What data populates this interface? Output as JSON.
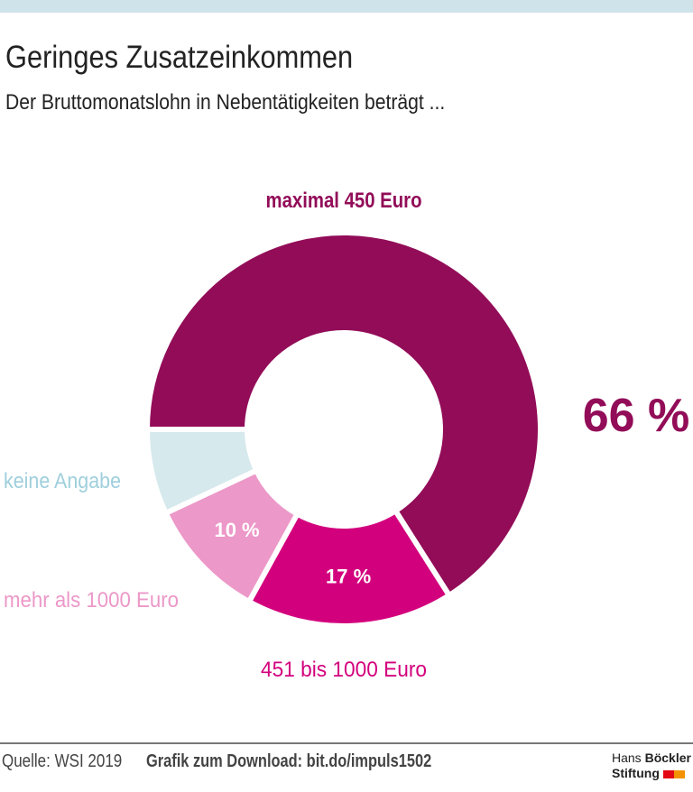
{
  "title": "Geringes Zusatzeinkommen",
  "subtitle": "Der Bruttomonatslohn in Nebentätigkeiten beträgt ...",
  "chart_data": {
    "type": "pie",
    "donut": true,
    "slices": [
      {
        "label": "maximal 450 Euro",
        "value": 66,
        "value_label": "66 %",
        "color": "#920c58"
      },
      {
        "label": "451 bis 1000 Euro",
        "value": 17,
        "value_label": "17 %",
        "color": "#d3007d"
      },
      {
        "label": "mehr als 1000 Euro",
        "value": 10,
        "value_label": "10 %",
        "color": "#ec98c8"
      },
      {
        "label": "keine Angabe",
        "value": 7,
        "value_label": "",
        "color": "#d6e9ed"
      }
    ]
  },
  "footer": {
    "source": "Quelle: WSI 2019",
    "download": "Grafik zum Download: bit.do/impuls1502",
    "logo_line1_a": "Hans",
    "logo_line1_b": "Böckler",
    "logo_line2": "Stiftung"
  }
}
